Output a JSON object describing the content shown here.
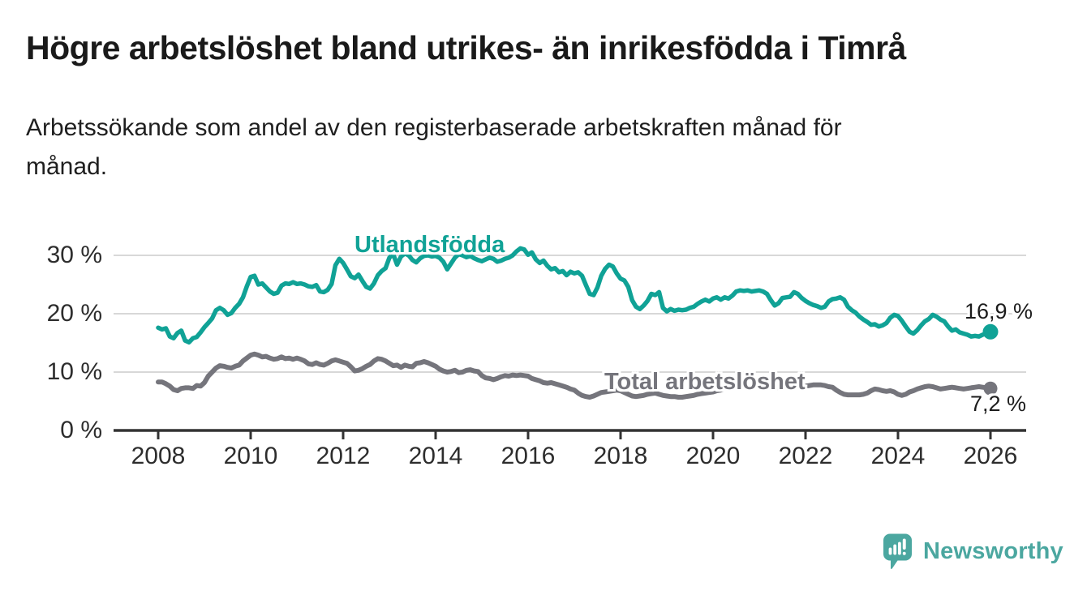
{
  "page": {
    "title": "Högre arbetslöshet bland utrikes- än inrikesfödda i Timrå",
    "subtitle": "Arbetssökande som andel av den registerbaserade arbetskraften månad för\nmånad."
  },
  "branding": {
    "logo_text": "Newsworthy",
    "logo_icon": "bar-chart-speech-bubble-icon",
    "logo_color": "#4BA7A0"
  },
  "chart_data": {
    "type": "line",
    "title": "Högre arbetslöshet bland utrikes- än inrikesfödda i Timrå",
    "subtitle": "Arbetssökande som andel av den registerbaserade arbetskraften månad för månad.",
    "xlabel": "",
    "ylabel": "",
    "y_unit": "%",
    "grid": "horizontal",
    "grid_color": "#D8D8D8",
    "axis_color": "#333333",
    "legend_position": "inline-labels-on-lines",
    "x_axis": {
      "min": 2008,
      "max": 2026,
      "ticks": [
        {
          "value": 2008,
          "label": "2008"
        },
        {
          "value": 2010,
          "label": "2010"
        },
        {
          "value": 2012,
          "label": "2012"
        },
        {
          "value": 2014,
          "label": "2014"
        },
        {
          "value": 2016,
          "label": "2016"
        },
        {
          "value": 2018,
          "label": "2018"
        },
        {
          "value": 2020,
          "label": "2020"
        },
        {
          "value": 2022,
          "label": "2022"
        },
        {
          "value": 2024,
          "label": "2024"
        },
        {
          "value": 2026,
          "label": "2026"
        }
      ]
    },
    "y_axis": {
      "min": 0,
      "max": 32,
      "ticks": [
        {
          "value": 0,
          "label": "0 %"
        },
        {
          "value": 10,
          "label": "10 %"
        },
        {
          "value": 20,
          "label": "20 %"
        },
        {
          "value": 30,
          "label": "30 %"
        }
      ]
    },
    "series": [
      {
        "id": "utlandsfodda",
        "name": "Utlandsfödda",
        "color": "#10A296",
        "end_label": "16,9 %",
        "end_value": 16.9,
        "start_year": 2008,
        "points_per_year": 12,
        "values": [
          17.6,
          17.3,
          17.5,
          16.1,
          15.8,
          16.7,
          17.1,
          15.4,
          15.1,
          15.8,
          16.0,
          16.8,
          17.7,
          18.4,
          19.2,
          20.6,
          21.0,
          20.6,
          19.8,
          20.1,
          21.0,
          21.7,
          22.8,
          24.7,
          26.3,
          26.5,
          25.0,
          25.2,
          24.5,
          23.8,
          23.4,
          23.6,
          24.8,
          25.2,
          25.1,
          25.4,
          25.1,
          25.2,
          25.0,
          24.7,
          24.6,
          24.9,
          23.8,
          23.7,
          24.1,
          25.1,
          28.3,
          29.4,
          28.7,
          27.6,
          26.4,
          26.1,
          26.7,
          25.6,
          24.6,
          24.3,
          25.2,
          26.6,
          27.3,
          27.8,
          29.6,
          30.2,
          28.4,
          29.8,
          30.3,
          30.0,
          29.2,
          28.8,
          29.5,
          29.9,
          30.0,
          29.8,
          29.9,
          29.6,
          28.9,
          27.6,
          28.6,
          29.6,
          30.2,
          30.0,
          29.7,
          29.9,
          29.5,
          29.2,
          29.0,
          29.3,
          29.6,
          29.4,
          28.9,
          29.1,
          29.4,
          29.6,
          30.0,
          30.7,
          31.2,
          31.0,
          30.1,
          30.5,
          29.3,
          28.7,
          29.1,
          28.2,
          27.6,
          27.8,
          27.1,
          27.3,
          26.6,
          27.2,
          26.9,
          27.1,
          26.5,
          24.9,
          23.4,
          23.2,
          24.5,
          26.5,
          27.7,
          28.4,
          28.1,
          26.9,
          26.0,
          25.7,
          24.6,
          22.3,
          21.2,
          20.8,
          21.4,
          22.2,
          23.4,
          23.2,
          23.7,
          21.0,
          20.4,
          20.8,
          20.5,
          20.7,
          20.6,
          20.7,
          21.0,
          21.2,
          21.7,
          22.1,
          22.4,
          22.1,
          22.6,
          22.8,
          22.4,
          22.8,
          22.6,
          23.1,
          23.8,
          24.0,
          23.9,
          24.0,
          23.8,
          23.9,
          24.0,
          23.8,
          23.4,
          22.3,
          21.4,
          21.8,
          22.7,
          22.8,
          22.9,
          23.7,
          23.4,
          22.7,
          22.2,
          21.8,
          21.5,
          21.3,
          21.0,
          21.2,
          22.1,
          22.5,
          22.6,
          22.8,
          22.4,
          21.2,
          20.6,
          20.2,
          19.5,
          19.0,
          18.6,
          18.1,
          18.2,
          17.8,
          18.0,
          18.4,
          19.3,
          19.8,
          19.6,
          18.8,
          17.8,
          16.9,
          16.6,
          17.2,
          18.0,
          18.7,
          19.1,
          19.8,
          19.5,
          19.0,
          18.7,
          17.8,
          17.1,
          17.3,
          16.8,
          16.6,
          16.4,
          16.1,
          16.2,
          16.1,
          16.4,
          16.6,
          16.9
        ]
      },
      {
        "id": "total-arbetsloshet",
        "name": "Total arbetslöshet",
        "color": "#75757C",
        "end_label": "7,2 %",
        "end_value": 7.2,
        "start_year": 2008,
        "points_per_year": 12,
        "values": [
          8.3,
          8.3,
          8.0,
          7.6,
          7.0,
          6.8,
          7.2,
          7.3,
          7.3,
          7.2,
          7.7,
          7.6,
          8.2,
          9.3,
          10.0,
          10.7,
          11.1,
          11.0,
          10.8,
          10.7,
          11.0,
          11.2,
          11.9,
          12.4,
          12.9,
          13.1,
          12.9,
          12.6,
          12.7,
          12.4,
          12.2,
          12.3,
          12.6,
          12.3,
          12.4,
          12.2,
          12.4,
          12.2,
          11.9,
          11.4,
          11.3,
          11.6,
          11.3,
          11.2,
          11.5,
          11.9,
          12.1,
          11.9,
          11.7,
          11.5,
          10.9,
          10.2,
          10.3,
          10.6,
          11.0,
          11.3,
          11.9,
          12.3,
          12.2,
          11.9,
          11.5,
          11.1,
          11.2,
          10.8,
          11.2,
          11.0,
          10.9,
          11.5,
          11.6,
          11.8,
          11.6,
          11.3,
          11.0,
          10.5,
          10.2,
          10.0,
          10.1,
          10.3,
          9.9,
          10.0,
          10.3,
          10.4,
          10.2,
          10.1,
          9.4,
          9.0,
          8.9,
          8.7,
          8.9,
          9.2,
          9.4,
          9.3,
          9.5,
          9.4,
          9.5,
          9.4,
          9.3,
          8.9,
          8.7,
          8.5,
          8.2,
          8.1,
          8.2,
          8.0,
          7.8,
          7.6,
          7.4,
          7.1,
          6.9,
          6.4,
          6.0,
          5.8,
          5.7,
          5.9,
          6.2,
          6.5,
          6.6,
          6.7,
          6.8,
          6.9,
          6.8,
          6.5,
          6.2,
          5.9,
          5.8,
          5.9,
          6.0,
          6.2,
          6.3,
          6.4,
          6.2,
          6.0,
          5.9,
          5.8,
          5.8,
          5.7,
          5.7,
          5.8,
          5.9,
          6.0,
          6.2,
          6.3,
          6.4,
          6.5,
          6.6,
          6.8,
          6.9,
          7.2,
          7.4,
          7.6,
          7.7,
          7.8,
          7.8,
          7.7,
          7.7,
          7.6,
          7.6,
          7.5,
          7.4,
          7.3,
          7.2,
          7.2,
          7.3,
          7.3,
          7.4,
          7.4,
          7.5,
          7.5,
          7.6,
          7.7,
          7.8,
          7.8,
          7.8,
          7.7,
          7.5,
          7.4,
          6.9,
          6.5,
          6.2,
          6.1,
          6.1,
          6.1,
          6.1,
          6.2,
          6.4,
          6.8,
          7.1,
          7.0,
          6.8,
          6.7,
          6.8,
          6.6,
          6.2,
          6.0,
          6.2,
          6.6,
          6.8,
          7.1,
          7.3,
          7.5,
          7.6,
          7.5,
          7.3,
          7.1,
          7.2,
          7.3,
          7.4,
          7.3,
          7.2,
          7.1,
          7.2,
          7.3,
          7.4,
          7.5,
          7.4,
          7.3,
          7.2
        ]
      }
    ]
  }
}
